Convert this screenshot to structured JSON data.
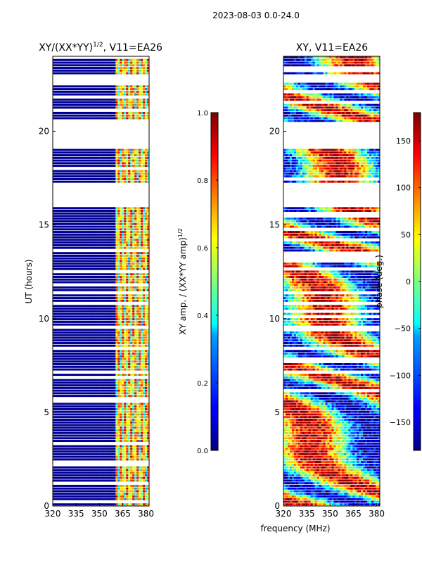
{
  "suptitle": "2023-08-03 0.0-24.0",
  "chart_data": [
    {
      "type": "heatmap",
      "title_prefix": "XY/(XX*YY)",
      "title_exp": "1/2",
      "title_suffix": ", V11=EA26",
      "xlabel": "",
      "ylabel": "UT (hours)",
      "xlim": [
        320,
        382
      ],
      "ylim": [
        0,
        24
      ],
      "xticks": [
        320,
        335,
        350,
        365,
        380
      ],
      "yticks": [
        0,
        5,
        10,
        15,
        20
      ],
      "colorbar": {
        "label_main": "XY amp. / (XX*YY amp)",
        "label_exp": "1/2",
        "range": [
          0.0,
          1.0
        ],
        "ticks": [
          "0.0",
          "0.2",
          "0.4",
          "0.6",
          "0.8",
          "1.0"
        ],
        "tick_values": [
          0.0,
          0.2,
          0.4,
          0.6,
          0.8,
          1.0
        ]
      },
      "colormap": "jet",
      "flagged_hour_ranges": [
        [
          20.5,
          19.1
        ],
        [
          17.2,
          16.0
        ],
        [
          23.0,
          22.6
        ]
      ],
      "rfi_free_band_mhz": [
        320,
        360
      ],
      "active_band_mhz": [
        360,
        382
      ]
    },
    {
      "type": "heatmap",
      "title": "XY, V11=EA26",
      "xlabel": "frequency (MHz)",
      "ylabel": "",
      "xlim": [
        320,
        382
      ],
      "ylim": [
        0,
        24
      ],
      "xticks": [
        320,
        335,
        350,
        365,
        380
      ],
      "yticks": [
        0,
        5,
        10,
        15,
        20
      ],
      "colorbar": {
        "label": "phase (deg.)",
        "range": [
          -180,
          180
        ],
        "ticks": [
          "150",
          "100",
          "50",
          "0",
          "−50",
          "−100",
          "−150"
        ],
        "tick_values": [
          150,
          100,
          50,
          0,
          -50,
          -100,
          -150
        ]
      },
      "colormap": "jet",
      "flagged_hour_ranges": [
        [
          20.5,
          19.1
        ],
        [
          17.2,
          16.0
        ],
        [
          23.0,
          22.6
        ]
      ]
    }
  ]
}
